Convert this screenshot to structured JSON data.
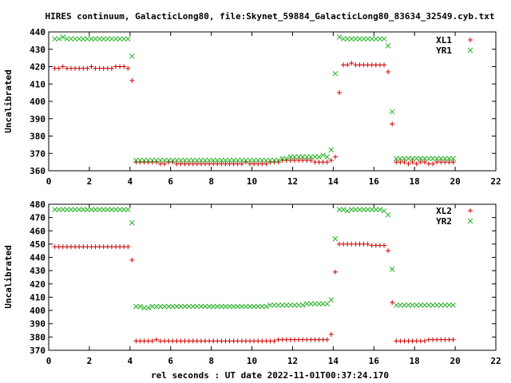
{
  "title": "HIRES continuum, GalacticLong80, file:Skynet_59884_GalacticLong80_83634_32549.cyb.txt",
  "xlabel": "rel seconds : UT date 2022-11-01T00:37:24.170",
  "colors": {
    "red": "#cc0000",
    "green": "#22b222"
  },
  "chart_data": [
    {
      "type": "scatter",
      "ylabel": "Uncalibrated",
      "xlim": [
        0,
        22
      ],
      "ylim": [
        360,
        440
      ],
      "xticks": [
        0,
        2,
        4,
        6,
        8,
        10,
        12,
        14,
        16,
        18,
        20,
        22
      ],
      "yticks": [
        360,
        370,
        380,
        390,
        400,
        410,
        420,
        430,
        440
      ],
      "legend": "top-right",
      "series": [
        {
          "name": "XL1",
          "marker": "plus",
          "color": "#cc0000",
          "x": [
            0.3,
            0.5,
            0.7,
            0.9,
            1.1,
            1.3,
            1.5,
            1.7,
            1.9,
            2.1,
            2.3,
            2.5,
            2.7,
            2.9,
            3.1,
            3.3,
            3.5,
            3.7,
            3.9,
            4.1,
            4.3,
            4.5,
            4.7,
            4.9,
            5.1,
            5.3,
            5.5,
            5.7,
            5.9,
            6.1,
            6.3,
            6.5,
            6.7,
            6.9,
            7.1,
            7.3,
            7.5,
            7.7,
            7.9,
            8.1,
            8.3,
            8.5,
            8.7,
            8.9,
            9.1,
            9.3,
            9.5,
            9.7,
            9.9,
            10.1,
            10.3,
            10.5,
            10.7,
            10.9,
            11.1,
            11.3,
            11.5,
            11.7,
            11.9,
            12.1,
            12.3,
            12.5,
            12.7,
            12.9,
            13.1,
            13.3,
            13.5,
            13.7,
            13.9,
            14.1,
            14.3,
            14.5,
            14.7,
            14.9,
            15.1,
            15.3,
            15.5,
            15.7,
            15.9,
            16.1,
            16.3,
            16.5,
            16.7,
            16.9,
            17.1,
            17.3,
            17.5,
            17.7,
            17.9,
            18.1,
            18.3,
            18.5,
            18.7,
            18.9,
            19.1,
            19.3,
            19.5,
            19.7,
            19.9
          ],
          "y": [
            419,
            419,
            420,
            419,
            419,
            419,
            419,
            419,
            419,
            420,
            419,
            419,
            419,
            419,
            419,
            420,
            420,
            420,
            419,
            412,
            365,
            365,
            365,
            365,
            365,
            365,
            364,
            364,
            365,
            365,
            364,
            364,
            364,
            364,
            364,
            364,
            364,
            364,
            364,
            364,
            364,
            364,
            364,
            364,
            364,
            364,
            364,
            365,
            364,
            364,
            364,
            364,
            364,
            365,
            365,
            365,
            366,
            366,
            366,
            366,
            366,
            366,
            366,
            366,
            365,
            365,
            365,
            365,
            366,
            368,
            405,
            421,
            421,
            422,
            421,
            421,
            421,
            421,
            421,
            421,
            421,
            421,
            417,
            387,
            365,
            365,
            365,
            364,
            365,
            364,
            365,
            365,
            364,
            364,
            365,
            365,
            365,
            365,
            365
          ]
        },
        {
          "name": "YR1",
          "marker": "cross",
          "color": "#22b222",
          "x": [
            0.3,
            0.5,
            0.7,
            0.9,
            1.1,
            1.3,
            1.5,
            1.7,
            1.9,
            2.1,
            2.3,
            2.5,
            2.7,
            2.9,
            3.1,
            3.3,
            3.5,
            3.7,
            3.9,
            4.1,
            4.3,
            4.5,
            4.7,
            4.9,
            5.1,
            5.3,
            5.5,
            5.7,
            5.9,
            6.1,
            6.3,
            6.5,
            6.7,
            6.9,
            7.1,
            7.3,
            7.5,
            7.7,
            7.9,
            8.1,
            8.3,
            8.5,
            8.7,
            8.9,
            9.1,
            9.3,
            9.5,
            9.7,
            9.9,
            10.1,
            10.3,
            10.5,
            10.7,
            10.9,
            11.1,
            11.3,
            11.5,
            11.7,
            11.9,
            12.1,
            12.3,
            12.5,
            12.7,
            12.9,
            13.1,
            13.3,
            13.5,
            13.7,
            13.9,
            14.1,
            14.3,
            14.5,
            14.7,
            14.9,
            15.1,
            15.3,
            15.5,
            15.7,
            15.9,
            16.1,
            16.3,
            16.5,
            16.7,
            16.9,
            17.1,
            17.3,
            17.5,
            17.7,
            17.9,
            18.1,
            18.3,
            18.5,
            18.7,
            18.9,
            19.1,
            19.3,
            19.5,
            19.7,
            19.9
          ],
          "y": [
            436,
            436,
            437,
            436,
            436,
            436,
            436,
            436,
            436,
            436,
            436,
            436,
            436,
            436,
            436,
            436,
            436,
            436,
            436,
            426,
            366,
            366,
            366,
            366,
            366,
            366,
            366,
            366,
            366,
            366,
            366,
            366,
            366,
            366,
            366,
            366,
            366,
            366,
            366,
            366,
            366,
            366,
            366,
            366,
            366,
            366,
            366,
            366,
            366,
            366,
            366,
            366,
            366,
            366,
            366,
            366,
            367,
            367,
            368,
            368,
            368,
            368,
            368,
            368,
            368,
            368,
            369,
            368,
            372,
            416,
            437,
            436,
            436,
            436,
            436,
            436,
            436,
            436,
            436,
            436,
            436,
            436,
            432,
            394,
            367,
            367,
            367,
            367,
            367,
            367,
            367,
            367,
            367,
            367,
            367,
            367,
            367,
            367,
            367
          ]
        }
      ]
    },
    {
      "type": "scatter",
      "ylabel": "Uncalibrated",
      "xlim": [
        0,
        22
      ],
      "ylim": [
        370,
        480
      ],
      "xticks": [
        0,
        2,
        4,
        6,
        8,
        10,
        12,
        14,
        16,
        18,
        20,
        22
      ],
      "yticks": [
        370,
        380,
        390,
        400,
        410,
        420,
        430,
        440,
        450,
        460,
        470,
        480
      ],
      "legend": "top-right",
      "series": [
        {
          "name": "XL2",
          "marker": "plus",
          "color": "#cc0000",
          "x": [
            0.3,
            0.5,
            0.7,
            0.9,
            1.1,
            1.3,
            1.5,
            1.7,
            1.9,
            2.1,
            2.3,
            2.5,
            2.7,
            2.9,
            3.1,
            3.3,
            3.5,
            3.7,
            3.9,
            4.1,
            4.3,
            4.5,
            4.7,
            4.9,
            5.1,
            5.3,
            5.5,
            5.7,
            5.9,
            6.1,
            6.3,
            6.5,
            6.7,
            6.9,
            7.1,
            7.3,
            7.5,
            7.7,
            7.9,
            8.1,
            8.3,
            8.5,
            8.7,
            8.9,
            9.1,
            9.3,
            9.5,
            9.7,
            9.9,
            10.1,
            10.3,
            10.5,
            10.7,
            10.9,
            11.1,
            11.3,
            11.5,
            11.7,
            11.9,
            12.1,
            12.3,
            12.5,
            12.7,
            12.9,
            13.1,
            13.3,
            13.5,
            13.7,
            13.9,
            14.1,
            14.3,
            14.5,
            14.7,
            14.9,
            15.1,
            15.3,
            15.5,
            15.7,
            15.9,
            16.1,
            16.3,
            16.5,
            16.7,
            16.9,
            17.1,
            17.3,
            17.5,
            17.7,
            17.9,
            18.1,
            18.3,
            18.5,
            18.7,
            18.9,
            19.1,
            19.3,
            19.5,
            19.7,
            19.9
          ],
          "y": [
            448,
            448,
            448,
            448,
            448,
            448,
            448,
            448,
            448,
            448,
            448,
            448,
            448,
            448,
            448,
            448,
            448,
            448,
            448,
            438,
            377,
            377,
            377,
            377,
            377,
            378,
            377,
            377,
            377,
            377,
            377,
            377,
            377,
            377,
            377,
            377,
            377,
            377,
            377,
            377,
            377,
            377,
            377,
            377,
            377,
            377,
            377,
            377,
            377,
            377,
            377,
            377,
            377,
            377,
            377,
            378,
            378,
            378,
            378,
            378,
            378,
            378,
            378,
            378,
            378,
            378,
            378,
            378,
            382,
            429,
            450,
            450,
            450,
            450,
            450,
            450,
            450,
            450,
            449,
            449,
            449,
            449,
            445,
            406,
            377,
            377,
            377,
            377,
            377,
            377,
            377,
            377,
            378,
            378,
            378,
            378,
            378,
            378,
            378
          ]
        },
        {
          "name": "YR2",
          "marker": "cross",
          "color": "#22b222",
          "x": [
            0.3,
            0.5,
            0.7,
            0.9,
            1.1,
            1.3,
            1.5,
            1.7,
            1.9,
            2.1,
            2.3,
            2.5,
            2.7,
            2.9,
            3.1,
            3.3,
            3.5,
            3.7,
            3.9,
            4.1,
            4.3,
            4.5,
            4.7,
            4.9,
            5.1,
            5.3,
            5.5,
            5.7,
            5.9,
            6.1,
            6.3,
            6.5,
            6.7,
            6.9,
            7.1,
            7.3,
            7.5,
            7.7,
            7.9,
            8.1,
            8.3,
            8.5,
            8.7,
            8.9,
            9.1,
            9.3,
            9.5,
            9.7,
            9.9,
            10.1,
            10.3,
            10.5,
            10.7,
            10.9,
            11.1,
            11.3,
            11.5,
            11.7,
            11.9,
            12.1,
            12.3,
            12.5,
            12.7,
            12.9,
            13.1,
            13.3,
            13.5,
            13.7,
            13.9,
            14.1,
            14.3,
            14.5,
            14.7,
            14.9,
            15.1,
            15.3,
            15.5,
            15.7,
            15.9,
            16.1,
            16.3,
            16.5,
            16.7,
            16.9,
            17.1,
            17.3,
            17.5,
            17.7,
            17.9,
            18.1,
            18.3,
            18.5,
            18.7,
            18.9,
            19.1,
            19.3,
            19.5,
            19.7,
            19.9
          ],
          "y": [
            476,
            476,
            476,
            476,
            476,
            476,
            476,
            476,
            476,
            476,
            476,
            476,
            476,
            476,
            476,
            476,
            476,
            476,
            476,
            466,
            403,
            403,
            402,
            402,
            403,
            403,
            403,
            403,
            403,
            403,
            403,
            403,
            403,
            403,
            403,
            403,
            403,
            403,
            403,
            403,
            403,
            403,
            403,
            403,
            403,
            403,
            403,
            403,
            403,
            403,
            403,
            403,
            403,
            404,
            404,
            404,
            404,
            404,
            404,
            404,
            404,
            404,
            405,
            405,
            405,
            405,
            405,
            405,
            408,
            454,
            476,
            476,
            475,
            476,
            476,
            476,
            476,
            476,
            476,
            476,
            476,
            475,
            472,
            431,
            404,
            404,
            404,
            404,
            404,
            404,
            404,
            404,
            404,
            404,
            404,
            404,
            404,
            404,
            404
          ]
        }
      ]
    }
  ]
}
